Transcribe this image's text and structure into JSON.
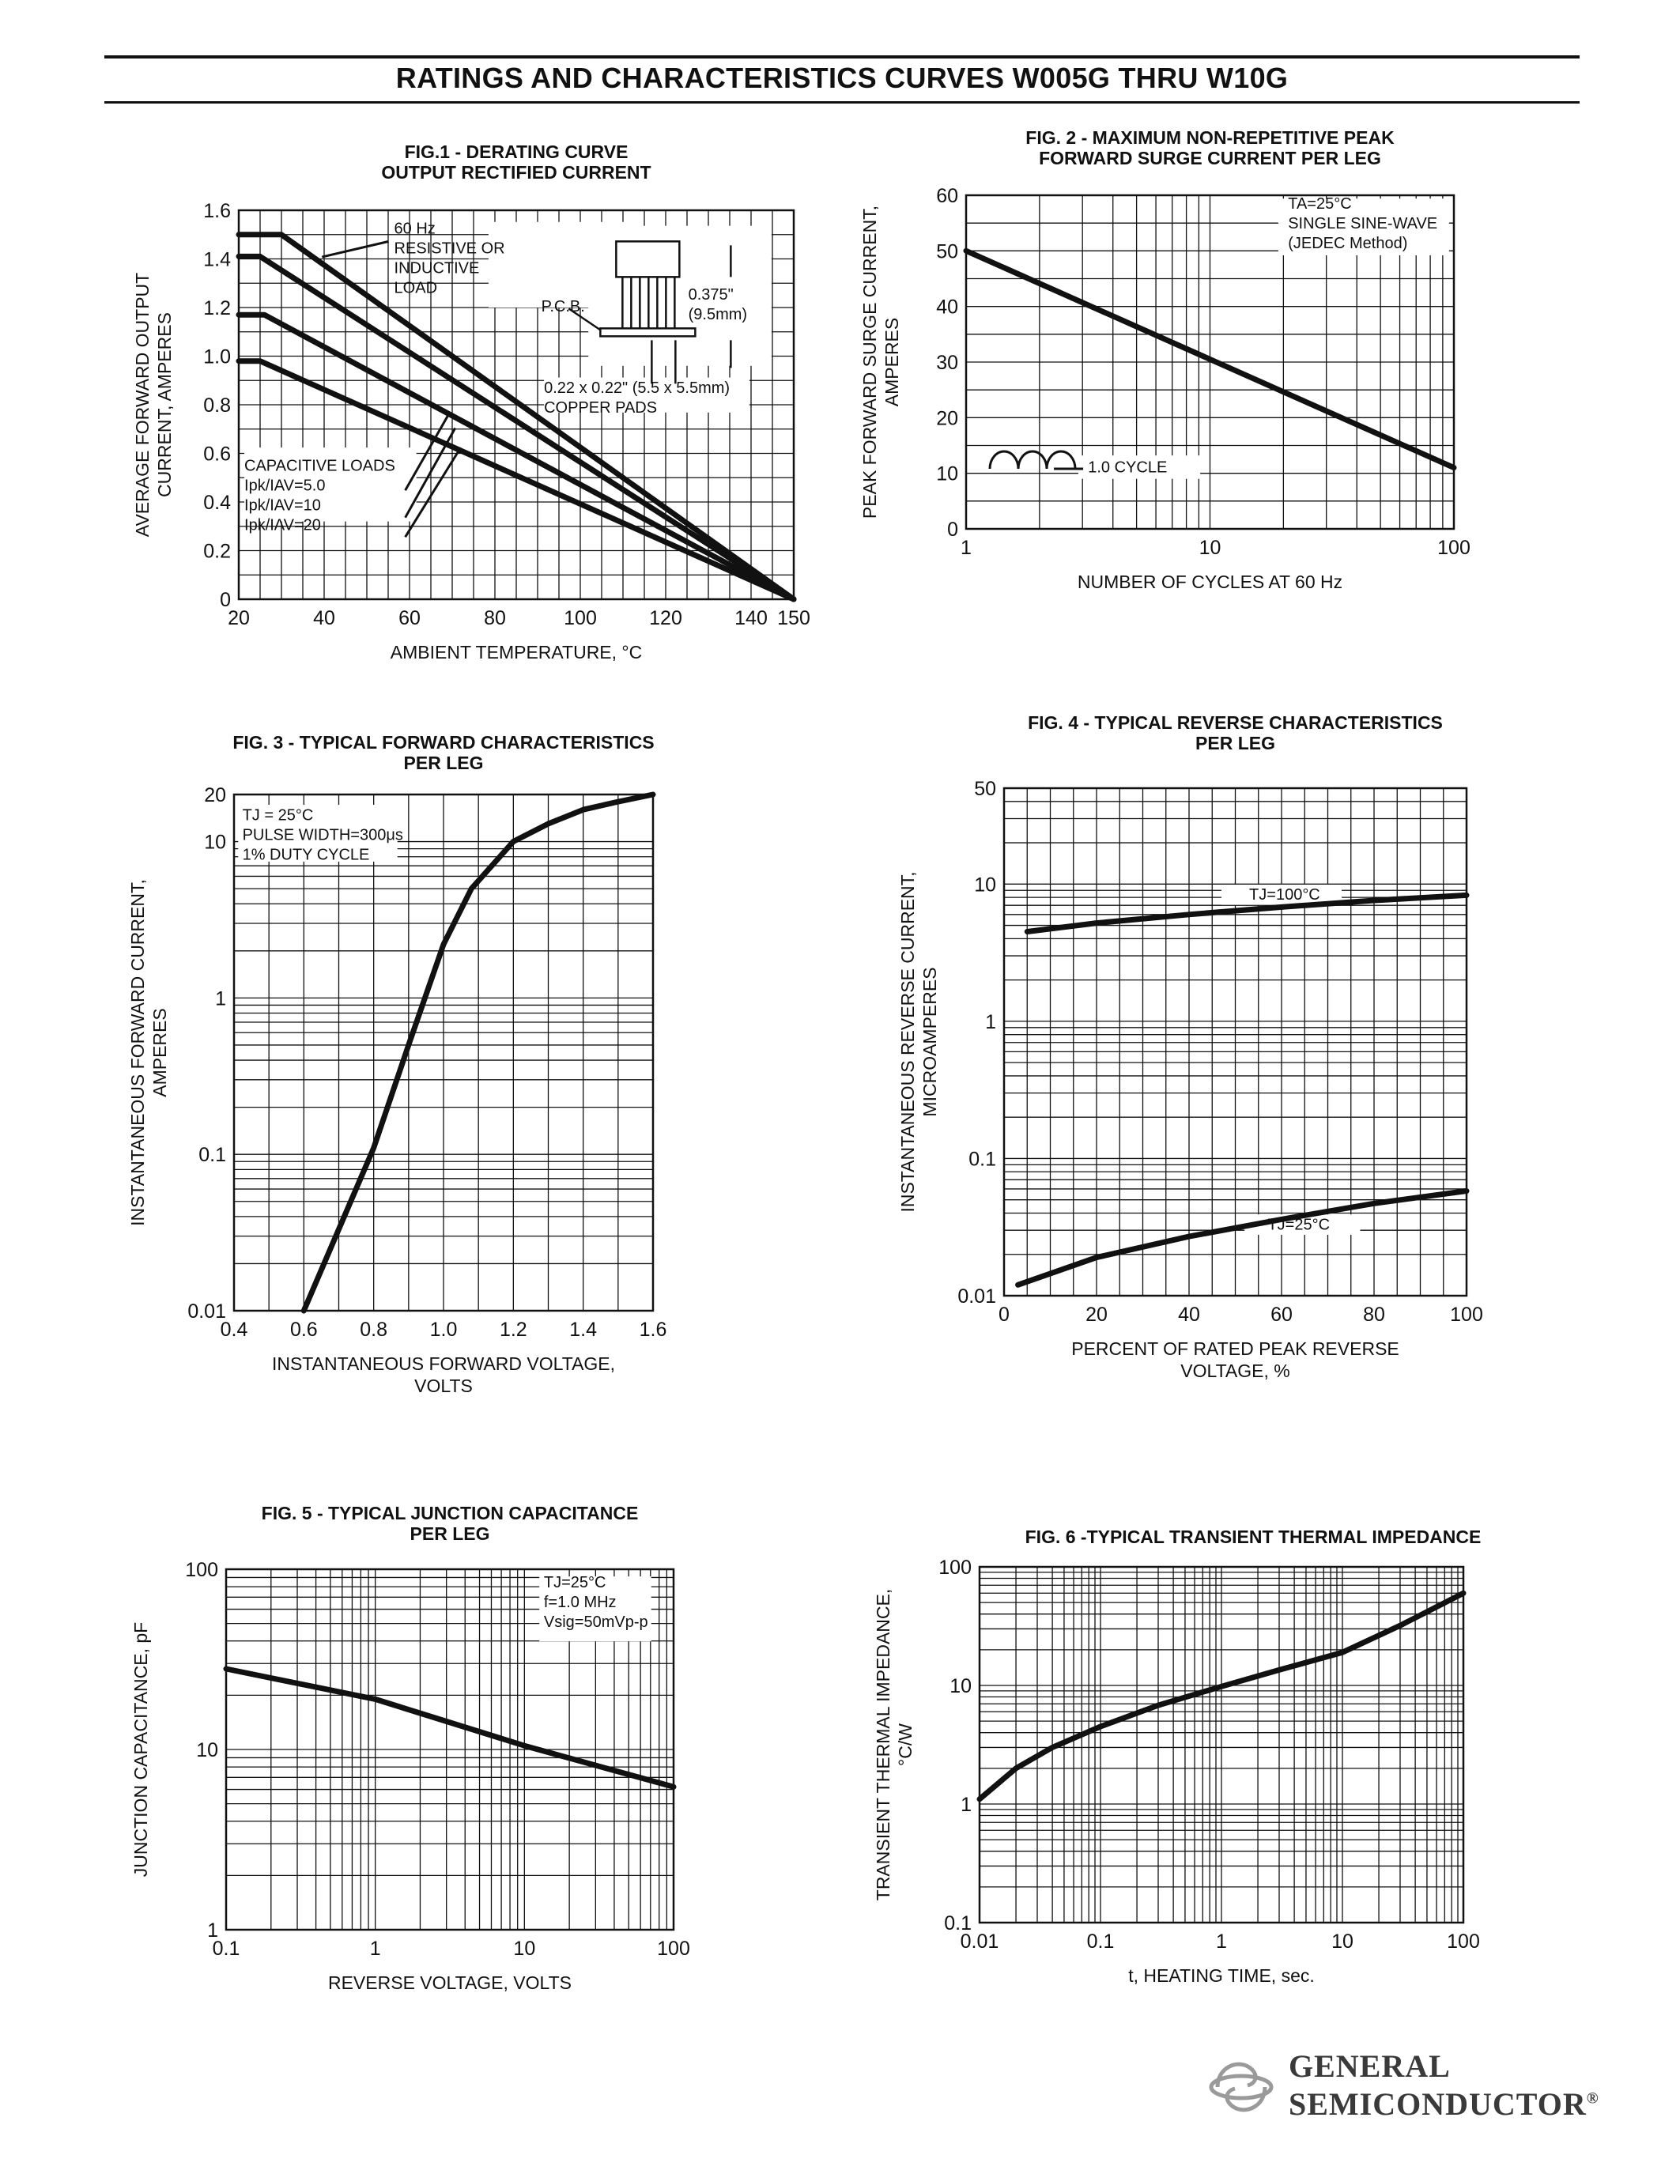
{
  "header": {
    "title": "RATINGS AND CHARACTERISTICS CURVES W005G THRU W10G"
  },
  "logo": {
    "line1": "GENERAL",
    "line2": "SEMICONDUCTOR",
    "registered": "®"
  },
  "chart_data": [
    {
      "id": "fig1",
      "type": "line",
      "title_lines": [
        "FIG.1 - DERATING CURVE",
        "OUTPUT RECTIFIED CURRENT"
      ],
      "xlabel": "AMBIENT TEMPERATURE, °C",
      "ylabel_lines": [
        "AVERAGE FORWARD OUTPUT",
        "CURRENT, AMPERES"
      ],
      "xscale": "linear",
      "yscale": "linear",
      "xlim": [
        20,
        150
      ],
      "ylim": [
        0,
        1.6
      ],
      "x_ticks": [
        20,
        40,
        60,
        80,
        100,
        120,
        140,
        150
      ],
      "y_ticks": [
        0,
        0.2,
        0.4,
        0.6,
        0.8,
        1.0,
        1.2,
        1.4,
        1.6
      ],
      "y_tick_labels": [
        "0",
        "0.2",
        "0.4",
        "0.6",
        "0.8",
        "1.0",
        "1.2",
        "1.4",
        "1.6"
      ],
      "grid": true,
      "series": [
        {
          "x": [
            20,
            30,
            150
          ],
          "y": [
            1.5,
            1.5,
            0
          ]
        },
        {
          "x": [
            20,
            25,
            150
          ],
          "y": [
            1.41,
            1.41,
            0
          ]
        },
        {
          "x": [
            20,
            26,
            150
          ],
          "y": [
            1.17,
            1.17,
            0
          ]
        },
        {
          "x": [
            20,
            25,
            150
          ],
          "y": [
            0.98,
            0.98,
            0
          ]
        }
      ],
      "annotations": {
        "resistive": [
          "60 Hz",
          "RESISTIVE OR",
          "INDUCTIVE",
          "LOAD"
        ],
        "pcb": "P.C.B.",
        "dimension": [
          "0.375\"",
          "(9.5mm)"
        ],
        "pads": [
          "0.22 x 0.22\" (5.5 x 5.5mm)",
          "COPPER PADS"
        ],
        "capacitive": [
          "CAPACITIVE LOADS",
          "Ipk/IAV=5.0",
          "Ipk/IAV=10",
          "Ipk/IAV=20"
        ]
      }
    },
    {
      "id": "fig2",
      "type": "line",
      "title_lines": [
        "FIG. 2 - MAXIMUM NON-REPETITIVE PEAK",
        "FORWARD SURGE CURRENT PER LEG"
      ],
      "xlabel": "NUMBER OF CYCLES AT 60 Hz",
      "ylabel_lines": [
        "PEAK FORWARD SURGE CURRENT,",
        "AMPERES"
      ],
      "xscale": "log",
      "yscale": "linear",
      "xlim": [
        1,
        100
      ],
      "ylim": [
        0,
        60
      ],
      "x_ticks": [
        1,
        10,
        100
      ],
      "y_ticks": [
        0,
        10,
        20,
        30,
        40,
        50,
        60
      ],
      "grid": true,
      "series": [
        {
          "x": [
            1,
            100
          ],
          "y": [
            50,
            11
          ]
        }
      ],
      "annotations": {
        "conditions": [
          "TA=25°C",
          "SINGLE SINE-WAVE",
          "(JEDEC Method)"
        ],
        "cycle": "1.0 CYCLE"
      }
    },
    {
      "id": "fig3",
      "type": "line",
      "title_lines": [
        "FIG. 3 - TYPICAL FORWARD CHARACTERISTICS",
        "PER LEG"
      ],
      "xlabel_lines": [
        "INSTANTANEOUS FORWARD VOLTAGE,",
        "VOLTS"
      ],
      "ylabel_lines": [
        "INSTANTANEOUS FORWARD CURRENT,",
        "AMPERES"
      ],
      "xscale": "linear",
      "yscale": "log",
      "xlim": [
        0.4,
        1.6
      ],
      "ylim": [
        0.01,
        20
      ],
      "x_ticks": [
        0.4,
        0.6,
        0.8,
        1.0,
        1.2,
        1.4,
        1.6
      ],
      "x_tick_labels": [
        "0.4",
        "0.6",
        "0.8",
        "1.0",
        "1.2",
        "1.4",
        "1.6"
      ],
      "y_ticks": [
        0.01,
        0.1,
        1,
        10,
        20
      ],
      "grid": true,
      "series": [
        {
          "x": [
            0.6,
            0.8,
            0.9,
            1.0,
            1.08,
            1.2,
            1.3,
            1.4,
            1.5,
            1.6
          ],
          "y": [
            0.01,
            0.11,
            0.5,
            2.2,
            5.0,
            10.0,
            13.0,
            16.0,
            18.0,
            20.0
          ]
        }
      ],
      "annotations": {
        "conditions": [
          "TJ = 25°C",
          "PULSE WIDTH=300μs",
          "1% DUTY CYCLE"
        ]
      }
    },
    {
      "id": "fig4",
      "type": "line",
      "title_lines": [
        "FIG. 4 - TYPICAL REVERSE CHARACTERISTICS",
        "PER LEG"
      ],
      "xlabel_lines": [
        "PERCENT OF RATED PEAK REVERSE",
        "VOLTAGE, %"
      ],
      "ylabel_lines": [
        "INSTANTANEOUS REVERSE CURRENT,",
        "MICROAMPERES"
      ],
      "xscale": "linear",
      "yscale": "log",
      "xlim": [
        0,
        100
      ],
      "ylim": [
        0.01,
        50
      ],
      "x_ticks": [
        0,
        20,
        40,
        60,
        80,
        100
      ],
      "y_ticks": [
        0.01,
        0.1,
        1,
        10,
        50
      ],
      "grid": true,
      "series": [
        {
          "name": "TJ=100°C",
          "x": [
            5,
            20,
            40,
            60,
            80,
            100
          ],
          "y": [
            4.5,
            5.2,
            6.0,
            6.8,
            7.6,
            8.3
          ]
        },
        {
          "name": "TJ=25°C",
          "x": [
            3,
            20,
            40,
            60,
            80,
            100
          ],
          "y": [
            0.012,
            0.019,
            0.027,
            0.036,
            0.047,
            0.058
          ]
        }
      ]
    },
    {
      "id": "fig5",
      "type": "line",
      "title_lines": [
        "FIG. 5 - TYPICAL JUNCTION CAPACITANCE",
        "PER LEG"
      ],
      "xlabel": "REVERSE VOLTAGE, VOLTS",
      "ylabel_lines": [
        "JUNCTION CAPACITANCE, pF"
      ],
      "xscale": "log",
      "yscale": "log",
      "xlim": [
        0.1,
        100
      ],
      "ylim": [
        1,
        100
      ],
      "x_ticks": [
        0.1,
        1,
        10,
        100
      ],
      "y_ticks": [
        1,
        10,
        100
      ],
      "grid": true,
      "series": [
        {
          "x": [
            0.1,
            1,
            10,
            100
          ],
          "y": [
            28,
            19,
            10.5,
            6.2
          ]
        }
      ],
      "annotations": {
        "conditions": [
          "TJ=25°C",
          "f=1.0 MHz",
          "Vsig=50mVp-p"
        ]
      }
    },
    {
      "id": "fig6",
      "type": "line",
      "title_lines": [
        "FIG. 6 -TYPICAL TRANSIENT THERMAL IMPEDANCE"
      ],
      "xlabel": "t, HEATING TIME, sec.",
      "ylabel_lines": [
        "TRANSIENT THERMAL IMPEDANCE,",
        "°C/W"
      ],
      "xscale": "log",
      "yscale": "log",
      "xlim": [
        0.01,
        100
      ],
      "ylim": [
        0.1,
        100
      ],
      "x_ticks": [
        0.01,
        0.1,
        1,
        10,
        100
      ],
      "y_ticks": [
        0.1,
        1,
        10,
        100
      ],
      "grid": true,
      "series": [
        {
          "x": [
            0.01,
            0.02,
            0.04,
            0.1,
            0.3,
            1,
            3,
            10,
            30,
            100
          ],
          "y": [
            1.1,
            2.0,
            3.0,
            4.5,
            6.8,
            9.8,
            13.5,
            19,
            32,
            60
          ]
        }
      ]
    }
  ]
}
